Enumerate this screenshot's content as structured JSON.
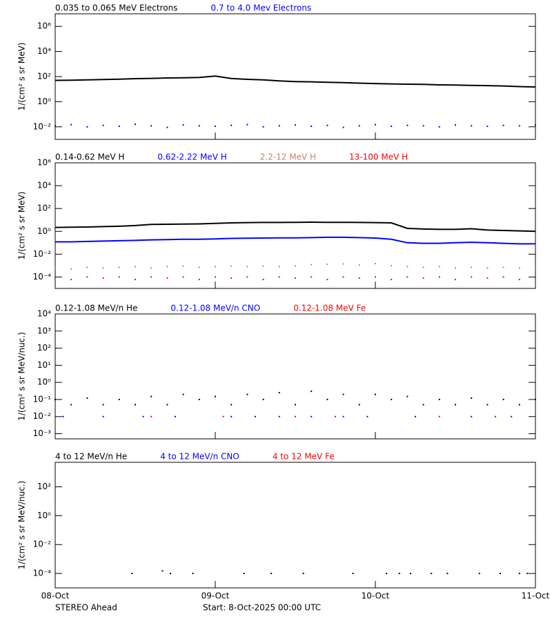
{
  "chart_data": [
    {
      "type": "line",
      "y_label": "1/(cm² s sr MeV)",
      "log_y": true,
      "xlim": [
        0,
        3
      ],
      "ylim": [
        0.001,
        10000000
      ],
      "yticks": [
        {
          "value": 0.01,
          "label": "10⁻²"
        },
        {
          "value": 1,
          "label": "10⁰"
        },
        {
          "value": 100,
          "label": "10²"
        },
        {
          "value": 10000,
          "label": "10⁴"
        },
        {
          "value": 1000000,
          "label": "10⁶"
        }
      ],
      "series": [
        {
          "name": "0.035 to 0.065 MeV Electrons",
          "color": "#000000",
          "style": "line",
          "x": [
            0,
            0.1,
            0.2,
            0.3,
            0.4,
            0.5,
            0.6,
            0.7,
            0.8,
            0.9,
            1.0,
            1.1,
            1.2,
            1.3,
            1.4,
            1.5,
            1.6,
            1.7,
            1.8,
            1.9,
            2.0,
            2.1,
            2.2,
            2.3,
            2.4,
            2.5,
            2.6,
            2.7,
            2.8,
            2.9,
            3.0
          ],
          "values": [
            50,
            52,
            55,
            58,
            62,
            68,
            72,
            78,
            80,
            85,
            110,
            70,
            60,
            55,
            45,
            40,
            38,
            35,
            33,
            30,
            28,
            26,
            25,
            24,
            22,
            21,
            20,
            19,
            18,
            16,
            15
          ]
        },
        {
          "name": "0.7 to 4.0 Mev Electrons",
          "color": "#0000ff",
          "style": "dots",
          "x": [
            0,
            0.1,
            0.2,
            0.3,
            0.4,
            0.5,
            0.6,
            0.7,
            0.8,
            0.9,
            1.0,
            1.1,
            1.2,
            1.3,
            1.4,
            1.5,
            1.6,
            1.7,
            1.8,
            1.9,
            2.0,
            2.1,
            2.2,
            2.3,
            2.4,
            2.5,
            2.6,
            2.7,
            2.8,
            2.9,
            3.0
          ],
          "values": [
            0.012,
            0.015,
            0.01,
            0.013,
            0.011,
            0.016,
            0.012,
            0.009,
            0.014,
            0.012,
            0.011,
            0.013,
            0.015,
            0.01,
            0.012,
            0.014,
            0.011,
            0.013,
            0.009,
            0.012,
            0.015,
            0.011,
            0.013,
            0.012,
            0.01,
            0.014,
            0.012,
            0.011,
            0.013,
            0.012,
            0.014
          ]
        }
      ]
    },
    {
      "type": "line",
      "y_label": "1/(cm² s sr MeV)",
      "log_y": true,
      "xlim": [
        0,
        3
      ],
      "ylim": [
        1e-05,
        1000000
      ],
      "yticks": [
        {
          "value": 0.0001,
          "label": "10⁻⁴"
        },
        {
          "value": 0.01,
          "label": "10⁻²"
        },
        {
          "value": 1,
          "label": "10⁰"
        },
        {
          "value": 100,
          "label": "10²"
        },
        {
          "value": 10000,
          "label": "10⁴"
        },
        {
          "value": 1000000,
          "label": "10⁶"
        }
      ],
      "series": [
        {
          "name": "0.14-0.62 MeV H",
          "color": "#000000",
          "style": "line",
          "x": [
            0,
            0.1,
            0.2,
            0.3,
            0.4,
            0.5,
            0.6,
            0.7,
            0.8,
            0.9,
            1.0,
            1.1,
            1.2,
            1.3,
            1.4,
            1.5,
            1.6,
            1.7,
            1.8,
            1.9,
            2.0,
            2.1,
            2.2,
            2.3,
            2.4,
            2.5,
            2.6,
            2.7,
            2.8,
            2.9,
            3.0
          ],
          "values": [
            2.2,
            2.3,
            2.4,
            2.6,
            2.8,
            3.2,
            4,
            4.2,
            4.3,
            4.5,
            5,
            5.5,
            5.8,
            6,
            6,
            6.2,
            6.3,
            6.2,
            6.2,
            6,
            5.8,
            5.5,
            1.8,
            1.6,
            1.5,
            1.5,
            1.7,
            1.3,
            1.2,
            1.1,
            1.0
          ]
        },
        {
          "name": "0.62-2.22 MeV H",
          "color": "#0000ff",
          "style": "line",
          "x": [
            0,
            0.1,
            0.2,
            0.3,
            0.4,
            0.5,
            0.6,
            0.7,
            0.8,
            0.9,
            1.0,
            1.1,
            1.2,
            1.3,
            1.4,
            1.5,
            1.6,
            1.7,
            1.8,
            1.9,
            2.0,
            2.1,
            2.2,
            2.3,
            2.4,
            2.5,
            2.6,
            2.7,
            2.8,
            2.9,
            3.0
          ],
          "values": [
            0.12,
            0.12,
            0.13,
            0.14,
            0.15,
            0.16,
            0.18,
            0.19,
            0.2,
            0.2,
            0.22,
            0.24,
            0.25,
            0.26,
            0.27,
            0.27,
            0.28,
            0.3,
            0.3,
            0.28,
            0.26,
            0.2,
            0.1,
            0.09,
            0.09,
            0.1,
            0.11,
            0.1,
            0.09,
            0.08,
            0.08
          ]
        },
        {
          "name": "2.2-12 MeV H",
          "color": "#c8806a",
          "style": "dots",
          "x": [
            0,
            0.1,
            0.2,
            0.3,
            0.4,
            0.5,
            0.6,
            0.7,
            0.8,
            0.9,
            1.0,
            1.1,
            1.2,
            1.3,
            1.4,
            1.5,
            1.6,
            1.7,
            1.8,
            1.9,
            2.0,
            2.1,
            2.2,
            2.3,
            2.4,
            2.5,
            2.6,
            2.7,
            2.8,
            2.9,
            3.0
          ],
          "values": [
            0.0006,
            0.0005,
            0.0007,
            0.0006,
            0.0007,
            0.0008,
            0.0006,
            0.0008,
            0.0009,
            0.0007,
            0.0008,
            0.0009,
            0.0008,
            0.0009,
            0.0008,
            0.0009,
            0.0012,
            0.0013,
            0.0014,
            0.0011,
            0.0015,
            0.001,
            0.0008,
            0.0007,
            0.0008,
            0.0006,
            0.0007,
            0.0006,
            0.0007,
            0.0006,
            0.0007
          ]
        },
        {
          "name": "13-100 MeV H",
          "color": "#ff0000",
          "style": "dots",
          "x": [
            0,
            0.1,
            0.2,
            0.3,
            0.4,
            0.5,
            0.6,
            0.7,
            0.8,
            0.9,
            1.0,
            1.1,
            1.2,
            1.3,
            1.4,
            1.5,
            1.6,
            1.7,
            1.8,
            1.9,
            2.0,
            2.1,
            2.2,
            2.3,
            2.4,
            2.5,
            2.6,
            2.7,
            2.8,
            2.9,
            3.0
          ],
          "values": [
            0.0001,
            6e-05,
            0.0001,
            8e-05,
            0.0001,
            6e-05,
            0.0001,
            8e-05,
            0.0001,
            6e-05,
            0.0001,
            8e-05,
            0.0001,
            6e-05,
            0.0001,
            8e-05,
            0.0001,
            6e-05,
            0.0001,
            8e-05,
            0.0001,
            6e-05,
            0.0001,
            8e-05,
            0.0001,
            6e-05,
            0.0001,
            8e-05,
            0.0001,
            6e-05,
            0.0001
          ]
        }
      ]
    },
    {
      "type": "line",
      "y_label": "1/(cm² s sr MeV/nuc.)",
      "log_y": true,
      "xlim": [
        0,
        3
      ],
      "ylim": [
        0.0005,
        10000
      ],
      "yticks": [
        {
          "value": 0.001,
          "label": "10⁻³"
        },
        {
          "value": 0.01,
          "label": "10⁻²"
        },
        {
          "value": 0.1,
          "label": "10⁻¹"
        },
        {
          "value": 1,
          "label": "10⁰"
        },
        {
          "value": 10,
          "label": "10¹"
        },
        {
          "value": 100,
          "label": "10²"
        },
        {
          "value": 1000,
          "label": "10³"
        },
        {
          "value": 10000,
          "label": "10⁴"
        }
      ],
      "series": [
        {
          "name": "0.12-1.08 MeV/n He",
          "color": "#000000",
          "style": "dots",
          "x": [
            0,
            0.1,
            0.2,
            0.3,
            0.4,
            0.5,
            0.6,
            0.7,
            0.8,
            0.9,
            1.0,
            1.1,
            1.2,
            1.3,
            1.4,
            1.5,
            1.6,
            1.7,
            1.8,
            1.9,
            2.0,
            2.1,
            2.2,
            2.3,
            2.4,
            2.5,
            2.6,
            2.7,
            2.8,
            2.9,
            3.0
          ],
          "values": [
            0.1,
            0.05,
            0.12,
            0.05,
            0.1,
            0.05,
            0.15,
            0.05,
            0.2,
            0.1,
            0.15,
            0.05,
            0.2,
            0.1,
            0.25,
            0.05,
            0.3,
            0.1,
            0.2,
            0.05,
            0.2,
            0.1,
            0.15,
            0.05,
            0.1,
            0.05,
            0.12,
            0.05,
            0.1,
            0.05,
            0.1
          ]
        },
        {
          "name": "0.12-1.08 MeV/n CNO",
          "color": "#0000ff",
          "style": "dots",
          "x": [
            0.05,
            0.3,
            0.55,
            0.75,
            1.1,
            1.25,
            1.4,
            1.6,
            1.8,
            1.95,
            2.25,
            2.6,
            2.85
          ],
          "values": [
            0.01,
            0.01,
            0.01,
            0.01,
            0.01,
            0.01,
            0.01,
            0.01,
            0.01,
            0.01,
            0.01,
            0.01,
            0.01
          ]
        },
        {
          "name": "0.12-1.08 MeV Fe",
          "color": "#ff0000",
          "style": "dots",
          "x": [
            0.6,
            1.05,
            1.5,
            1.75,
            2.4,
            2.75
          ],
          "values": [
            0.01,
            0.01,
            0.01,
            0.01,
            0.01,
            0.01
          ]
        }
      ]
    },
    {
      "type": "line",
      "y_label": "1/(cm² s sr MeV/nuc.)",
      "log_y": true,
      "xlim": [
        0,
        3
      ],
      "ylim": [
        1e-05,
        5000
      ],
      "yticks": [
        {
          "value": 0.0001,
          "label": "10⁻⁴"
        },
        {
          "value": 0.01,
          "label": "10⁻²"
        },
        {
          "value": 1,
          "label": "10⁰"
        },
        {
          "value": 100,
          "label": "10²"
        }
      ],
      "xticks": [
        {
          "value": 0,
          "label": "08-Oct"
        },
        {
          "value": 1,
          "label": "09-Oct"
        },
        {
          "value": 2,
          "label": "10-Oct"
        },
        {
          "value": 3,
          "label": "11-Oct"
        }
      ],
      "series": [
        {
          "name": "4 to 12 MeV/n He",
          "color": "#000000",
          "style": "dots",
          "x": [
            0.48,
            0.67,
            0.72,
            0.86,
            1.18,
            1.35,
            1.55,
            1.86,
            2.07,
            2.15,
            2.22,
            2.35,
            2.45,
            2.65,
            2.78,
            2.9,
            2.95
          ],
          "values": [
            0.0001,
            0.00015,
            0.0001,
            0.0001,
            0.0001,
            0.0001,
            0.0001,
            0.0001,
            0.0001,
            0.0001,
            0.0001,
            0.0001,
            0.0001,
            0.0001,
            0.0001,
            0.0001,
            0.0001
          ]
        },
        {
          "name": "4 to 12 MeV/n CNO",
          "color": "#0000ff",
          "style": "dots",
          "x": [],
          "values": []
        },
        {
          "name": "4 to 12 MeV Fe",
          "color": "#ff0000",
          "style": "dots",
          "x": [],
          "values": []
        }
      ]
    }
  ],
  "footer": {
    "left": "STEREO Ahead",
    "center": "Start:  8-Oct-2025 00:00 UTC"
  }
}
